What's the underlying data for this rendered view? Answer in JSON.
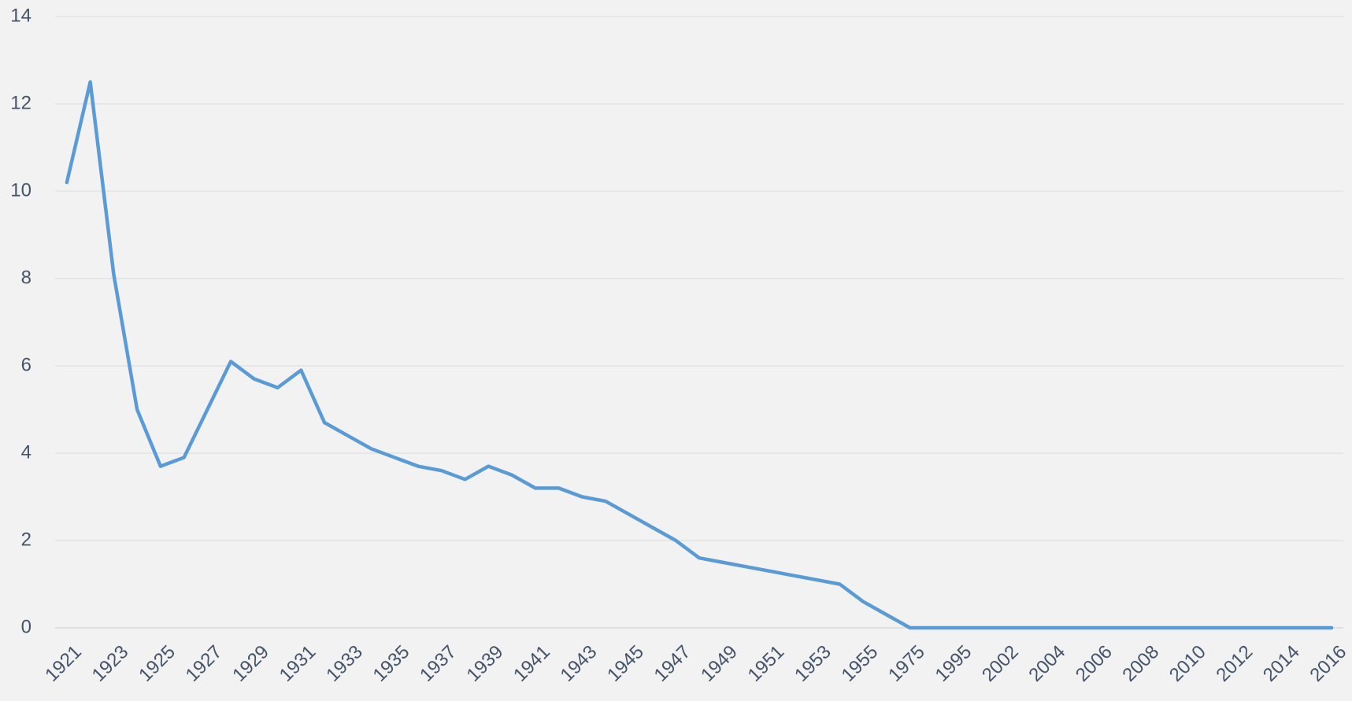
{
  "chart_data": {
    "type": "line",
    "categories": [
      "1921",
      null,
      "1923",
      null,
      "1925",
      null,
      "1927",
      null,
      "1929",
      null,
      "1931",
      null,
      "1933",
      null,
      "1935",
      null,
      "1937",
      null,
      "1939",
      null,
      "1941",
      null,
      "1943",
      null,
      "1945",
      null,
      "1947",
      null,
      "1949",
      null,
      "1951",
      null,
      "1953",
      null,
      "1955",
      null,
      "1975",
      null,
      "1995",
      null,
      "2002",
      null,
      "2004",
      null,
      "2006",
      null,
      "2008",
      null,
      "2010",
      null,
      "2012",
      null,
      "2014",
      null,
      "2016"
    ],
    "series": [
      {
        "color": "#5b9bd5",
        "values": [
          10.2,
          12.5,
          8.1,
          5.0,
          3.7,
          3.9,
          5.0,
          6.1,
          5.7,
          5.5,
          5.9,
          4.7,
          4.4,
          4.1,
          3.9,
          3.7,
          3.6,
          3.4,
          3.7,
          3.5,
          3.2,
          3.2,
          3.0,
          2.9,
          2.6,
          2.3,
          2.0,
          1.6,
          1.5,
          1.4,
          1.3,
          1.2,
          1.1,
          1.0,
          0.6,
          0.3,
          0,
          0,
          0,
          0,
          0,
          0,
          0,
          0,
          0,
          0,
          0,
          0,
          0,
          0,
          0,
          0,
          0,
          0,
          0
        ]
      }
    ],
    "ylim": [
      0,
      14
    ],
    "yticks": [
      0,
      2,
      4,
      6,
      8,
      10,
      12,
      14
    ],
    "grid": true
  }
}
